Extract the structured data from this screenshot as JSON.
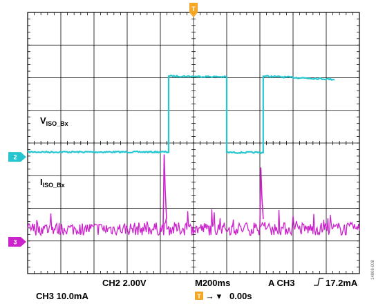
{
  "chart_data": {
    "type": "line",
    "title": "",
    "grid": true,
    "xlim": [
      -1.0,
      1.0
    ],
    "x_unit": "s",
    "x_divisions": 10,
    "y_divisions": 8,
    "series": [
      {
        "name": "V_ISO_Bx",
        "channel": "2",
        "color": "#26C6D0",
        "scale_label": "CH2  2.00V",
        "volts_per_div": 2.0,
        "points": [
          [
            -1.0,
            0.05
          ],
          [
            -0.15,
            0.05
          ],
          [
            -0.15,
            4.7
          ],
          [
            0.2,
            4.65
          ],
          [
            0.2,
            0.02
          ],
          [
            0.42,
            0.02
          ],
          [
            0.42,
            4.7
          ],
          [
            0.85,
            4.5
          ]
        ]
      },
      {
        "name": "I_ISO_Bx",
        "channel": "3",
        "color": "#CC22CC",
        "scale_label": "CH3  10.0mA",
        "amps_per_div_mA": 10.0,
        "baseline_mA": 1.2,
        "noise_mA": 2.0,
        "spikes": [
          {
            "x": -0.175,
            "mA": 24.0
          },
          {
            "x": 0.408,
            "mA": 20.0
          }
        ]
      }
    ],
    "annotations": {
      "v_label_main": "V",
      "v_label_sub": "ISO_Bx",
      "i_label_main": "I",
      "i_label_sub": "ISO_Bx"
    }
  },
  "status_bar": {
    "ch2_setting": "CH2  2.00V",
    "ch3_setting": "CH3  10.0mA",
    "timebase": "M200ms",
    "trigger_label": "A  CH3",
    "trigger_level": "17.2mA",
    "trigger_position": "0.00s",
    "trigger_marker_glyph": "T"
  },
  "markers": {
    "ch2_marker": "2",
    "ch3_marker": "3",
    "trigger_top": "T",
    "ch2_color": "#26C6D0",
    "ch3_color": "#CC22CC",
    "trigger_color": "#F5A623"
  },
  "side_caption": "14808-008"
}
